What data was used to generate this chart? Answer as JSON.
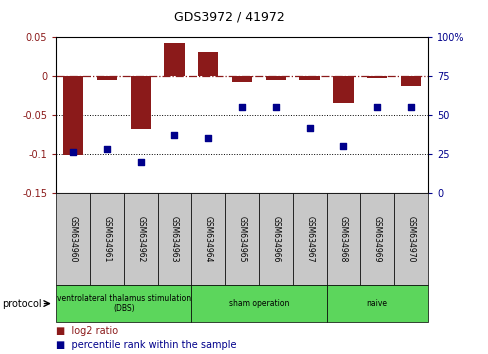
{
  "title": "GDS3972 / 41972",
  "samples": [
    "GSM634960",
    "GSM634961",
    "GSM634962",
    "GSM634963",
    "GSM634964",
    "GSM634965",
    "GSM634966",
    "GSM634967",
    "GSM634968",
    "GSM634969",
    "GSM634970"
  ],
  "log2_ratio": [
    -0.101,
    -0.005,
    -0.068,
    0.043,
    0.031,
    -0.007,
    -0.005,
    -0.005,
    -0.035,
    -0.003,
    -0.013
  ],
  "percentile_rank": [
    26,
    28,
    20,
    37,
    35,
    55,
    55,
    42,
    30,
    55,
    55
  ],
  "bar_color": "#8b1a1a",
  "dot_color": "#00008b",
  "left_ylim": [
    -0.15,
    0.05
  ],
  "right_ylim": [
    0,
    100
  ],
  "left_yticks": [
    0.05,
    0.0,
    -0.05,
    -0.1,
    -0.15
  ],
  "left_yticklabels": [
    "0.05",
    "0",
    "-0.05",
    "-0.1",
    "-0.15"
  ],
  "right_yticks": [
    100,
    75,
    50,
    25,
    0
  ],
  "right_yticklabels": [
    "100%",
    "75",
    "50",
    "25",
    "0"
  ],
  "hline_dots": [
    -0.05,
    -0.1
  ],
  "groups": [
    {
      "start": 0,
      "end": 3,
      "label": "ventrolateral thalamus stimulation\n(DBS)"
    },
    {
      "start": 4,
      "end": 7,
      "label": "sham operation"
    },
    {
      "start": 8,
      "end": 10,
      "label": "naive"
    }
  ],
  "sample_box_color": "#c8c8c8",
  "protocol_box_color": "#5cd65c",
  "legend_bar_label": "log2 ratio",
  "legend_dot_label": "percentile rank within the sample",
  "background_color": "#ffffff"
}
